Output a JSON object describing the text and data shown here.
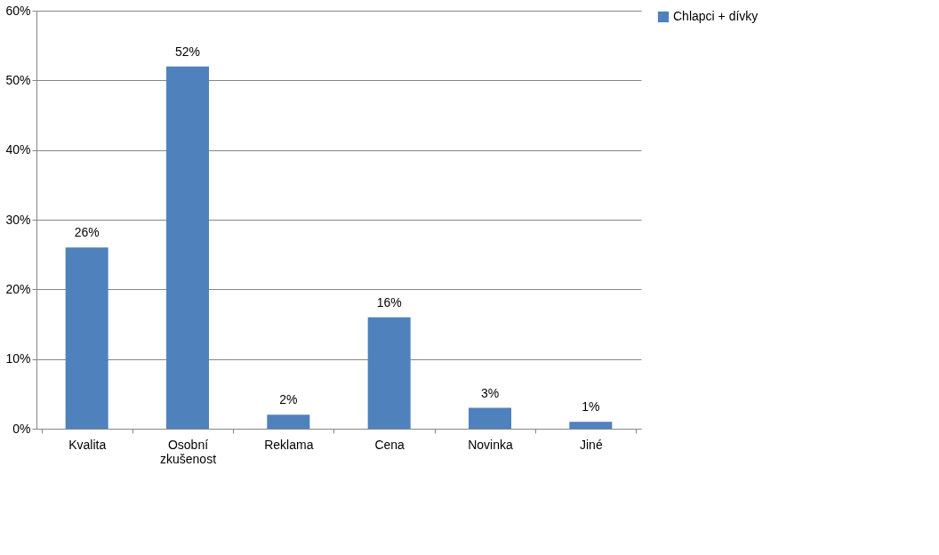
{
  "chart_data": {
    "type": "bar",
    "categories": [
      "Kvalita",
      "Osobní zkušenost",
      "Reklama",
      "Cena",
      "Novinka",
      "Jiné"
    ],
    "series": [
      {
        "name": "Chlapci + dívky",
        "color": "#4f81bd",
        "values": [
          26,
          52,
          2,
          16,
          3,
          1
        ],
        "value_labels": [
          "26%",
          "52%",
          "2%",
          "16%",
          "3%",
          "1%"
        ]
      }
    ],
    "ylim": [
      0,
      60
    ],
    "yticks": [
      {
        "value": 0,
        "label": "0%"
      },
      {
        "value": 10,
        "label": "10%"
      },
      {
        "value": 20,
        "label": "20%"
      },
      {
        "value": 30,
        "label": "30%"
      },
      {
        "value": 40,
        "label": "40%"
      },
      {
        "value": 50,
        "label": "50%"
      },
      {
        "value": 60,
        "label": "60%"
      }
    ],
    "grid": "y",
    "legend": "right"
  }
}
